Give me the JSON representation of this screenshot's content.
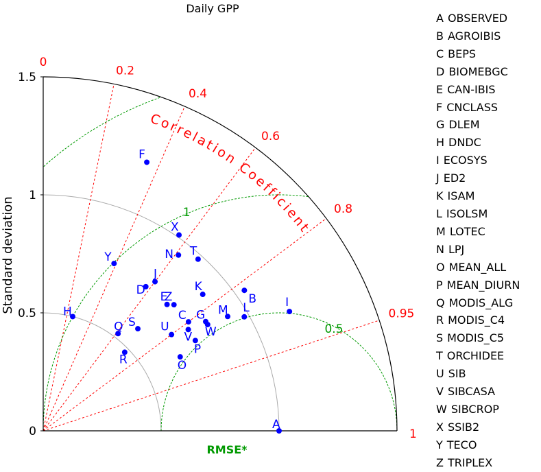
{
  "chart_data": {
    "type": "taylor",
    "title": "Daily GPP",
    "ylabel": "Standard deviation",
    "std_range": [
      0,
      1.5
    ],
    "std_ticks": [
      "0",
      "0.5",
      "1",
      "1.5"
    ],
    "correlation_label": "Correlation Coefficient",
    "correlation_ticks": [
      {
        "value": 0,
        "label": "0"
      },
      {
        "value": 0.2,
        "label": "0.2"
      },
      {
        "value": 0.4,
        "label": "0.4"
      },
      {
        "value": 0.6,
        "label": "0.6"
      },
      {
        "value": 0.8,
        "label": "0.8"
      },
      {
        "value": 0.95,
        "label": "0.95"
      },
      {
        "value": 1,
        "label": "1"
      }
    ],
    "rmse_label": "RMSE*",
    "rmse_contours": [
      {
        "value": 0.5,
        "label": "0.5"
      },
      {
        "value": 1,
        "label": "1"
      },
      {
        "value": 1.5,
        "label": "1.5"
      }
    ],
    "points": [
      {
        "id": "A",
        "name": "OBSERVED",
        "std": 1.0,
        "corr": 1.0
      },
      {
        "id": "B",
        "name": "AGROIBIS",
        "std": 1.04,
        "corr": 0.82
      },
      {
        "id": "C",
        "name": "BEPS",
        "std": 0.77,
        "corr": 0.8
      },
      {
        "id": "D",
        "name": "BIOMEBGC",
        "std": 0.75,
        "corr": 0.58
      },
      {
        "id": "E",
        "name": "CAN-IBIS",
        "std": 0.75,
        "corr": 0.7
      },
      {
        "id": "F",
        "name": "CNCLASS",
        "std": 1.22,
        "corr": 0.36
      },
      {
        "id": "G",
        "name": "DLEM",
        "std": 0.83,
        "corr": 0.83
      },
      {
        "id": "H",
        "name": "DNDC",
        "std": 0.5,
        "corr": 0.25
      },
      {
        "id": "I",
        "name": "ECOSYS",
        "std": 1.16,
        "corr": 0.9
      },
      {
        "id": "J",
        "name": "ED2",
        "std": 0.79,
        "corr": 0.6
      },
      {
        "id": "K",
        "name": "ISAM",
        "std": 0.89,
        "corr": 0.76
      },
      {
        "id": "L",
        "name": "ISOLSM",
        "std": 0.98,
        "corr": 0.87
      },
      {
        "id": "M",
        "name": "LOTEC",
        "std": 0.92,
        "corr": 0.85
      },
      {
        "id": "N",
        "name": "LPJ",
        "std": 0.94,
        "corr": 0.61
      },
      {
        "id": "O",
        "name": "MEAN_ALL",
        "std": 0.66,
        "corr": 0.88
      },
      {
        "id": "P",
        "name": "MEAN_DIURN",
        "std": 0.75,
        "corr": 0.86
      },
      {
        "id": "Q",
        "name": "MODIS_ALG",
        "std": 0.52,
        "corr": 0.61
      },
      {
        "id": "R",
        "name": "MODIS_C4",
        "std": 0.48,
        "corr": 0.72
      },
      {
        "id": "S",
        "name": "MODIS_C5",
        "std": 0.59,
        "corr": 0.68
      },
      {
        "id": "T",
        "name": "ORCHIDEE",
        "std": 0.98,
        "corr": 0.67
      },
      {
        "id": "U",
        "name": "SIB",
        "std": 0.68,
        "corr": 0.8
      },
      {
        "id": "V",
        "name": "SIBCASA",
        "std": 0.75,
        "corr": 0.82
      },
      {
        "id": "W",
        "name": "SIBCROP",
        "std": 0.83,
        "corr": 0.84
      },
      {
        "id": "X",
        "name": "SSIB2",
        "std": 1.01,
        "corr": 0.57
      },
      {
        "id": "Y",
        "name": "TECO",
        "std": 0.77,
        "corr": 0.39
      },
      {
        "id": "Z",
        "name": "TRIPLEX",
        "std": 0.77,
        "corr": 0.72
      }
    ],
    "colors": {
      "points": "#0000ff",
      "correlation": "#ff0000",
      "rmse": "#009900",
      "std_circles": "#aaaaaa",
      "axes": "#000000"
    }
  }
}
